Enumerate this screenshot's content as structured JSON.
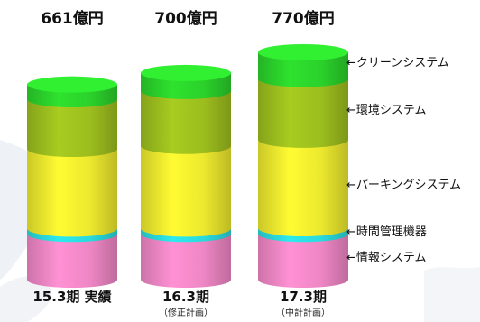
{
  "chart_data": {
    "type": "bar",
    "stacked": true,
    "unit": "億円",
    "categories": [
      "15.3期 実績",
      "16.3期",
      "17.3期"
    ],
    "category_notes": [
      "",
      "（修正計画）",
      "（中計計画）"
    ],
    "totals": [
      "661億円",
      "700億円",
      "770億円"
    ],
    "total_values": [
      661,
      700,
      770
    ],
    "series": [
      {
        "name": "情報システム",
        "color": "#ee86c4",
        "values": [
          155,
          155,
          155
        ]
      },
      {
        "name": "時間管理機器",
        "color": "#2ad9dc",
        "values": [
          18,
          18,
          19
        ]
      },
      {
        "name": "パーキングシステム",
        "color": "#ece82e",
        "values": [
          270,
          280,
          300
        ]
      },
      {
        "name": "環境システム",
        "color": "#9cbd1e",
        "values": [
          168,
          186,
          206
        ]
      },
      {
        "name": "クリーンシステム",
        "color": "#2bd12b",
        "values": [
          50,
          61,
          90
        ]
      }
    ],
    "legend_prefix": "←",
    "legend_placement": "right",
    "legend_labels": [
      "クリーンシステム",
      "環境システム",
      "パーキングシステム",
      "時間管理機器",
      "情報システム"
    ]
  }
}
